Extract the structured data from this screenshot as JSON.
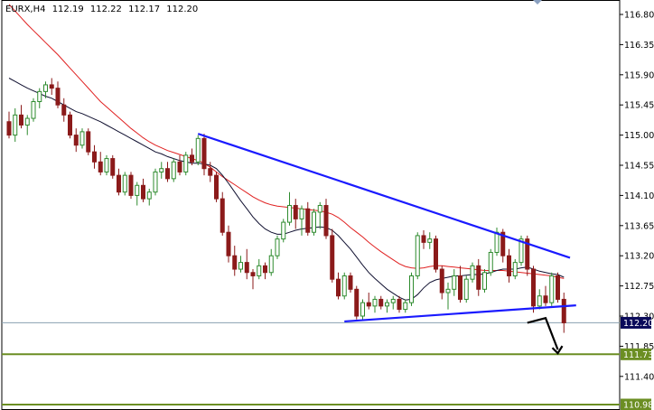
{
  "header": {
    "symbol": "EURX,H4",
    "open": "112.19",
    "high": "112.22",
    "low": "112.17",
    "close": "112.20"
  },
  "colors": {
    "bull": "#2e8b2e",
    "bear": "#8b1a1a",
    "ma_fast": "#101030",
    "ma_slow": "#e02020",
    "trendline": "#1a1aff",
    "support": "#6b8e23",
    "price_line": "#8aa0b0",
    "price_label_bg": "#0a0a5a",
    "arrow": "#000000"
  },
  "chart_data": {
    "type": "candlestick",
    "ylim": [
      111.0,
      117.0
    ],
    "y_ticks": [
      "116.80",
      "116.35",
      "115.90",
      "115.45",
      "115.00",
      "114.55",
      "114.10",
      "113.65",
      "113.20",
      "112.75",
      "112.30",
      "111.85",
      "111.40"
    ],
    "price_levels": [
      {
        "label": "112.20",
        "value": 112.2,
        "style": "current"
      },
      {
        "label": "111.73",
        "value": 111.73,
        "style": "support"
      },
      {
        "label": "110.98",
        "value": 110.98,
        "style": "support"
      }
    ],
    "candles": [
      [
        115.2,
        115.35,
        114.95,
        115.0
      ],
      [
        115.0,
        115.4,
        114.9,
        115.3
      ],
      [
        115.3,
        115.45,
        115.1,
        115.15
      ],
      [
        115.15,
        115.3,
        115.0,
        115.25
      ],
      [
        115.25,
        115.55,
        115.2,
        115.5
      ],
      [
        115.5,
        115.7,
        115.4,
        115.65
      ],
      [
        115.65,
        115.8,
        115.55,
        115.75
      ],
      [
        115.75,
        115.85,
        115.6,
        115.7
      ],
      [
        115.7,
        115.8,
        115.4,
        115.45
      ],
      [
        115.45,
        115.55,
        115.2,
        115.3
      ],
      [
        115.3,
        115.35,
        114.95,
        115.0
      ],
      [
        115.0,
        115.1,
        114.75,
        114.85
      ],
      [
        114.85,
        115.1,
        114.8,
        115.05
      ],
      [
        115.05,
        115.1,
        114.7,
        114.75
      ],
      [
        114.75,
        114.85,
        114.5,
        114.6
      ],
      [
        114.6,
        114.75,
        114.4,
        114.45
      ],
      [
        114.45,
        114.7,
        114.4,
        114.65
      ],
      [
        114.65,
        114.7,
        114.35,
        114.4
      ],
      [
        114.4,
        114.5,
        114.1,
        114.15
      ],
      [
        114.15,
        114.45,
        114.1,
        114.4
      ],
      [
        114.4,
        114.45,
        114.05,
        114.1
      ],
      [
        114.1,
        114.3,
        113.95,
        114.25
      ],
      [
        114.25,
        114.35,
        114.0,
        114.05
      ],
      [
        114.05,
        114.2,
        113.95,
        114.15
      ],
      [
        114.15,
        114.5,
        114.1,
        114.45
      ],
      [
        114.45,
        114.6,
        114.35,
        114.5
      ],
      [
        114.5,
        114.6,
        114.3,
        114.35
      ],
      [
        114.35,
        114.65,
        114.3,
        114.6
      ],
      [
        114.6,
        114.7,
        114.4,
        114.45
      ],
      [
        114.45,
        114.75,
        114.4,
        114.7
      ],
      [
        114.7,
        114.8,
        114.55,
        114.6
      ],
      [
        114.6,
        115.0,
        114.55,
        114.95
      ],
      [
        114.95,
        115.02,
        114.4,
        114.5
      ],
      [
        114.5,
        114.6,
        114.3,
        114.4
      ],
      [
        114.4,
        114.45,
        114.0,
        114.05
      ],
      [
        114.05,
        114.15,
        113.5,
        113.55
      ],
      [
        113.55,
        113.65,
        113.1,
        113.2
      ],
      [
        113.2,
        113.35,
        112.9,
        113.0
      ],
      [
        113.0,
        113.2,
        112.95,
        113.1
      ],
      [
        113.1,
        113.3,
        112.85,
        112.95
      ],
      [
        112.95,
        113.0,
        112.7,
        112.9
      ],
      [
        112.9,
        113.15,
        112.85,
        113.05
      ],
      [
        113.05,
        113.1,
        112.85,
        112.95
      ],
      [
        112.95,
        113.3,
        112.9,
        113.2
      ],
      [
        113.2,
        113.5,
        113.15,
        113.45
      ],
      [
        113.45,
        113.75,
        113.4,
        113.7
      ],
      [
        113.7,
        114.15,
        113.65,
        113.95
      ],
      [
        113.95,
        114.05,
        113.6,
        113.75
      ],
      [
        113.75,
        113.95,
        113.5,
        113.9
      ],
      [
        113.9,
        114.0,
        113.5,
        113.55
      ],
      [
        113.55,
        113.9,
        113.5,
        113.85
      ],
      [
        113.85,
        114.0,
        113.6,
        113.95
      ],
      [
        113.95,
        114.05,
        113.45,
        113.5
      ],
      [
        113.5,
        113.6,
        112.8,
        112.85
      ],
      [
        112.85,
        112.95,
        112.55,
        112.6
      ],
      [
        112.6,
        112.95,
        112.55,
        112.9
      ],
      [
        112.9,
        112.95,
        112.65,
        112.7
      ],
      [
        112.7,
        112.75,
        112.25,
        112.3
      ],
      [
        112.3,
        112.55,
        112.25,
        112.5
      ],
      [
        112.5,
        112.65,
        112.4,
        112.45
      ],
      [
        112.45,
        112.6,
        112.35,
        112.55
      ],
      [
        112.55,
        112.6,
        112.4,
        112.45
      ],
      [
        112.45,
        112.55,
        112.35,
        112.5
      ],
      [
        112.5,
        112.6,
        112.4,
        112.55
      ],
      [
        112.55,
        112.6,
        112.35,
        112.4
      ],
      [
        112.4,
        112.55,
        112.35,
        112.5
      ],
      [
        112.5,
        112.95,
        112.45,
        112.9
      ],
      [
        112.9,
        113.55,
        112.85,
        113.5
      ],
      [
        113.5,
        113.58,
        113.3,
        113.4
      ],
      [
        113.4,
        113.55,
        113.3,
        113.45
      ],
      [
        113.45,
        113.5,
        112.95,
        113.0
      ],
      [
        113.0,
        113.05,
        112.55,
        112.65
      ],
      [
        112.65,
        112.8,
        112.4,
        112.7
      ],
      [
        112.7,
        113.0,
        112.6,
        112.9
      ],
      [
        112.9,
        113.05,
        112.5,
        112.55
      ],
      [
        112.55,
        112.9,
        112.5,
        112.85
      ],
      [
        112.85,
        113.1,
        112.8,
        113.05
      ],
      [
        113.05,
        113.15,
        112.6,
        112.7
      ],
      [
        112.7,
        113.0,
        112.65,
        112.95
      ],
      [
        112.95,
        113.3,
        112.9,
        113.25
      ],
      [
        113.25,
        113.62,
        113.2,
        113.55
      ],
      [
        113.55,
        113.6,
        113.1,
        113.2
      ],
      [
        113.2,
        113.3,
        112.8,
        112.9
      ],
      [
        112.9,
        113.15,
        112.85,
        113.1
      ],
      [
        113.1,
        113.5,
        113.05,
        113.45
      ],
      [
        113.45,
        113.5,
        112.9,
        113.0
      ],
      [
        113.0,
        113.05,
        112.35,
        112.45
      ],
      [
        112.45,
        112.7,
        112.4,
        112.6
      ],
      [
        112.6,
        112.75,
        112.45,
        112.5
      ],
      [
        112.5,
        112.95,
        112.45,
        112.9
      ],
      [
        112.9,
        112.95,
        112.5,
        112.55
      ],
      [
        112.55,
        112.65,
        112.05,
        112.2
      ]
    ],
    "ma_fast": [
      115.85,
      115.8,
      115.75,
      115.7,
      115.66,
      115.62,
      115.58,
      115.55,
      115.5,
      115.45,
      115.4,
      115.35,
      115.32,
      115.28,
      115.24,
      115.2,
      115.15,
      115.1,
      115.05,
      115.0,
      114.95,
      114.9,
      114.85,
      114.8,
      114.75,
      114.72,
      114.68,
      114.65,
      114.62,
      114.6,
      114.58,
      114.58,
      114.57,
      114.55,
      114.5,
      114.4,
      114.28,
      114.15,
      114.02,
      113.9,
      113.78,
      113.68,
      113.6,
      113.55,
      113.52,
      113.52,
      113.55,
      113.58,
      113.6,
      113.61,
      113.62,
      113.63,
      113.62,
      113.58,
      113.5,
      113.4,
      113.3,
      113.18,
      113.06,
      112.95,
      112.86,
      112.78,
      112.7,
      112.64,
      112.58,
      112.54,
      112.55,
      112.62,
      112.72,
      112.8,
      112.84,
      112.86,
      112.88,
      112.9,
      112.9,
      112.91,
      112.92,
      112.92,
      112.93,
      112.95,
      112.98,
      113.0,
      113.0,
      113.0,
      113.02,
      113.03,
      113.0,
      112.97,
      112.95,
      112.93,
      112.92,
      112.88
    ],
    "ma_slow": [
      116.95,
      116.85,
      116.75,
      116.65,
      116.56,
      116.47,
      116.38,
      116.29,
      116.2,
      116.1,
      116.0,
      115.9,
      115.8,
      115.7,
      115.6,
      115.5,
      115.42,
      115.34,
      115.26,
      115.18,
      115.1,
      115.03,
      114.96,
      114.9,
      114.85,
      114.81,
      114.77,
      114.74,
      114.71,
      114.68,
      114.65,
      114.62,
      114.58,
      114.52,
      114.45,
      114.38,
      114.32,
      114.26,
      114.2,
      114.14,
      114.08,
      114.03,
      113.99,
      113.96,
      113.94,
      113.93,
      113.92,
      113.91,
      113.9,
      113.89,
      113.88,
      113.87,
      113.85,
      113.82,
      113.77,
      113.7,
      113.62,
      113.55,
      113.48,
      113.4,
      113.33,
      113.26,
      113.2,
      113.14,
      113.08,
      113.04,
      113.02,
      113.01,
      113.02,
      113.04,
      113.05,
      113.05,
      113.04,
      113.03,
      113.02,
      113.01,
      113.0,
      112.99,
      112.98,
      112.98,
      112.98,
      112.98,
      112.97,
      112.96,
      112.95,
      112.94,
      112.93,
      112.92,
      112.91,
      112.9,
      112.88,
      112.86
    ],
    "trendlines": [
      {
        "name": "upper",
        "from": [
          31,
          115.02
        ],
        "to": [
          92,
          113.17
        ]
      },
      {
        "name": "lower",
        "from": [
          55,
          112.22
        ],
        "to": [
          93,
          112.46
        ]
      }
    ],
    "arrow": [
      [
        85,
        112.2
      ],
      [
        88,
        112.27
      ],
      [
        90,
        111.8
      ]
    ]
  }
}
